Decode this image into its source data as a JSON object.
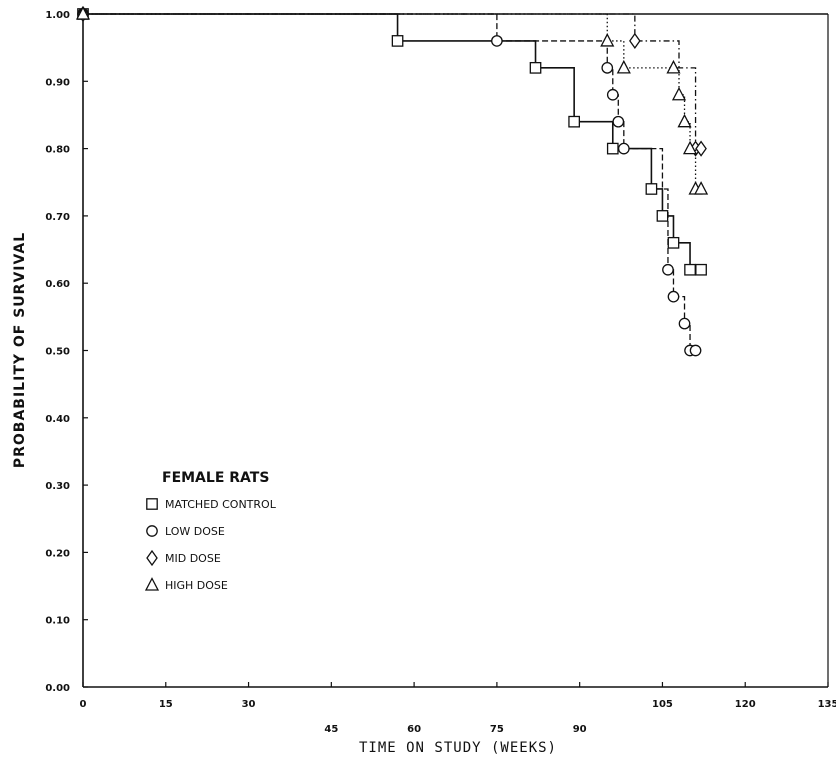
{
  "chart_data": {
    "type": "line",
    "xlabel": "TIME ON STUDY (WEEKS)",
    "ylabel": "PROBABILITY OF SURVIVAL",
    "xlim": [
      0,
      135
    ],
    "ylim": [
      0,
      1.0
    ],
    "xticks": [
      "0",
      "15",
      "30",
      "45",
      "60",
      "75",
      "90",
      "105",
      "120",
      "135"
    ],
    "yticks": [
      "0.00",
      "0.10",
      "0.20",
      "0.30",
      "0.40",
      "0.50",
      "0.60",
      "0.70",
      "0.80",
      "0.90",
      "1.00"
    ],
    "grid": false,
    "legend": {
      "title": "FEMALE RATS",
      "placement": "lower-left"
    },
    "series": [
      {
        "name": "MATCHED CONTROL",
        "marker": "square",
        "line_style": "solid",
        "steps": [
          [
            0,
            1.0
          ],
          [
            57,
            0.96
          ],
          [
            82,
            0.92
          ],
          [
            89,
            0.84
          ],
          [
            96,
            0.8
          ],
          [
            103,
            0.74
          ],
          [
            105,
            0.7
          ],
          [
            107,
            0.66
          ],
          [
            110,
            0.62
          ],
          [
            112,
            0.62
          ]
        ],
        "markers": [
          [
            57,
            0.96
          ],
          [
            82,
            0.92
          ],
          [
            89,
            0.84
          ],
          [
            96,
            0.8
          ],
          [
            103,
            0.74
          ],
          [
            105,
            0.7
          ],
          [
            107,
            0.66
          ],
          [
            110,
            0.62
          ],
          [
            112,
            0.62
          ]
        ]
      },
      {
        "name": "LOW DOSE",
        "marker": "circle",
        "line_style": "dashed",
        "steps": [
          [
            0,
            1.0
          ],
          [
            75,
            0.96
          ],
          [
            95,
            0.92
          ],
          [
            96,
            0.88
          ],
          [
            97,
            0.84
          ],
          [
            98,
            0.8
          ],
          [
            105,
            0.74
          ],
          [
            106,
            0.62
          ],
          [
            107,
            0.58
          ],
          [
            109,
            0.54
          ],
          [
            110,
            0.5
          ],
          [
            112,
            0.5
          ]
        ],
        "markers": [
          [
            75,
            0.96
          ],
          [
            95,
            0.92
          ],
          [
            96,
            0.88
          ],
          [
            97,
            0.84
          ],
          [
            98,
            0.8
          ],
          [
            106,
            0.62
          ],
          [
            107,
            0.58
          ],
          [
            109,
            0.54
          ],
          [
            110,
            0.5
          ],
          [
            111,
            0.5
          ]
        ]
      },
      {
        "name": "MID DOSE",
        "marker": "diamond",
        "line_style": "dash-dot",
        "steps": [
          [
            0,
            1.0
          ],
          [
            100,
            0.96
          ],
          [
            108,
            0.92
          ],
          [
            111,
            0.8
          ],
          [
            112,
            0.8
          ]
        ],
        "markers": [
          [
            100,
            0.96
          ],
          [
            111,
            0.8
          ],
          [
            112,
            0.8
          ]
        ]
      },
      {
        "name": "HIGH DOSE",
        "marker": "triangle",
        "line_style": "dotted",
        "steps": [
          [
            0,
            1.0
          ],
          [
            95,
            0.96
          ],
          [
            98,
            0.92
          ],
          [
            106,
            0.92
          ],
          [
            108,
            0.88
          ],
          [
            109,
            0.84
          ],
          [
            110,
            0.8
          ],
          [
            111,
            0.74
          ],
          [
            112,
            0.74
          ]
        ],
        "markers": [
          [
            95,
            0.96
          ],
          [
            98,
            0.92
          ],
          [
            107,
            0.92
          ],
          [
            108,
            0.88
          ],
          [
            109,
            0.84
          ],
          [
            110,
            0.8
          ],
          [
            111,
            0.74
          ],
          [
            112,
            0.74
          ]
        ]
      }
    ]
  }
}
